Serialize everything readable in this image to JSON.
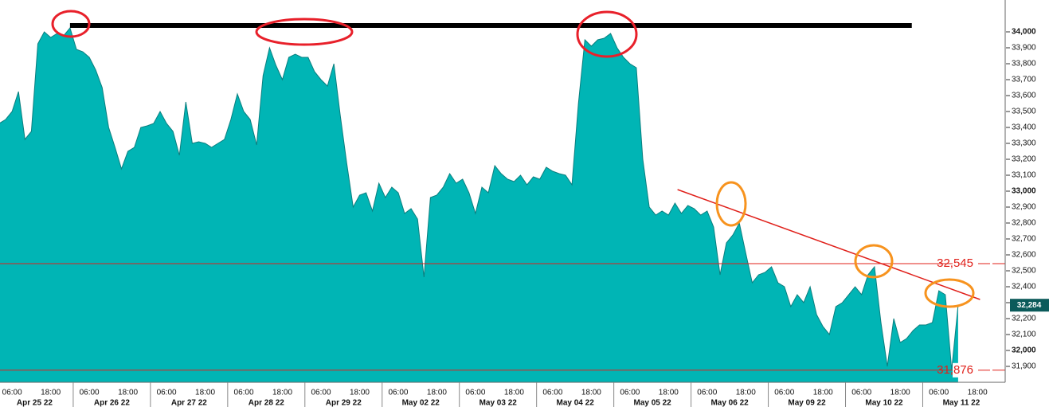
{
  "chart_data": {
    "type": "area",
    "color": "#00b5b5",
    "line_color": "#0a7f7f",
    "ylim": [
      31800,
      34200
    ],
    "yticks": [
      {
        "value": 31900,
        "label": "31,900"
      },
      {
        "value": 32000,
        "label": "32,000"
      },
      {
        "value": 32100,
        "label": "32,100"
      },
      {
        "value": 32200,
        "label": "32,200"
      },
      {
        "value": 32300,
        "label": "32,300"
      },
      {
        "value": 32400,
        "label": "32,400"
      },
      {
        "value": 32500,
        "label": "32,500"
      },
      {
        "value": 32600,
        "label": "32,600"
      },
      {
        "value": 32700,
        "label": "32,700"
      },
      {
        "value": 32800,
        "label": "32,800"
      },
      {
        "value": 32900,
        "label": "32,900"
      },
      {
        "value": 33000,
        "label": "33,000"
      },
      {
        "value": 33100,
        "label": "33,100"
      },
      {
        "value": 33200,
        "label": "33,200"
      },
      {
        "value": 33300,
        "label": "33,300"
      },
      {
        "value": 33400,
        "label": "33,400"
      },
      {
        "value": 33500,
        "label": "33,500"
      },
      {
        "value": 33600,
        "label": "33,600"
      },
      {
        "value": 33700,
        "label": "33,700"
      },
      {
        "value": 33800,
        "label": "33,800"
      },
      {
        "value": 33900,
        "label": "33,900"
      },
      {
        "value": 34000,
        "label": "34,000"
      }
    ],
    "dates": [
      "Apr 25 22",
      "Apr 26 22",
      "Apr 27 22",
      "Apr 28 22",
      "Apr 29 22",
      "May 02 22",
      "May 03 22",
      "May 04 22",
      "May 05 22",
      "May 06 22",
      "May 09 22",
      "May 10 22",
      "May 11 22"
    ],
    "categories": [
      null,
      null,
      "06:00",
      null,
      null,
      null,
      null,
      null,
      "18:00",
      null,
      null,
      null,
      null,
      null,
      "06:00",
      null,
      null,
      null,
      null,
      null,
      "18:00",
      null,
      null,
      null,
      null,
      null,
      "06:00",
      null,
      null,
      null,
      null,
      null,
      "18:00",
      null,
      null,
      null,
      null,
      null,
      "06:00",
      null,
      null,
      null,
      null,
      null,
      "18:00",
      null,
      null,
      null,
      null,
      null,
      "06:00",
      null,
      null,
      null,
      null,
      null,
      "18:00",
      null,
      null,
      null,
      null,
      null,
      "06:00",
      null,
      null,
      null,
      null,
      null,
      "18:00",
      null,
      null,
      null,
      null,
      null,
      "06:00",
      null,
      null,
      null,
      null,
      null,
      "18:00",
      null,
      null,
      null,
      null,
      null,
      "06:00",
      null,
      null,
      null,
      null,
      null,
      "18:00",
      null,
      null,
      null,
      null,
      null,
      "06:00",
      null,
      null,
      null,
      null,
      null,
      "18:00",
      null,
      null,
      null,
      null,
      null,
      "06:00",
      null,
      null,
      null,
      null,
      null,
      "18:00",
      null,
      null,
      null,
      null,
      null,
      "06:00",
      null,
      null,
      null,
      null,
      null,
      "18:00",
      null,
      null,
      null,
      null,
      null,
      "06:00",
      null,
      null,
      null,
      null,
      null,
      "18:00",
      null,
      null,
      null,
      null,
      null,
      "06:00",
      null,
      null,
      null,
      null,
      null,
      "18:00"
    ],
    "values": [
      33425,
      33450,
      33500,
      33625,
      33325,
      33375,
      33925,
      34000,
      33965,
      33990,
      33975,
      34025,
      33890,
      33875,
      33840,
      33760,
      33650,
      33400,
      33275,
      33140,
      33250,
      33275,
      33400,
      33410,
      33425,
      33500,
      33425,
      33375,
      33225,
      33560,
      33300,
      33310,
      33300,
      33275,
      33300,
      33325,
      33450,
      33610,
      33500,
      33450,
      33290,
      33725,
      33900,
      33790,
      33700,
      33840,
      33860,
      33840,
      33840,
      33750,
      33700,
      33660,
      33800,
      33475,
      33175,
      32900,
      32975,
      32990,
      32875,
      33050,
      32960,
      33025,
      32990,
      32860,
      32890,
      32825,
      32460,
      32960,
      32975,
      33025,
      33110,
      33050,
      33075,
      32990,
      32860,
      33025,
      32990,
      33160,
      33110,
      33075,
      33060,
      33100,
      33040,
      33090,
      33075,
      33150,
      33125,
      33110,
      33100,
      33040,
      33550,
      33950,
      33910,
      33950,
      33960,
      33990,
      33900,
      33840,
      33800,
      33775,
      33200,
      32900,
      32850,
      32875,
      32850,
      32925,
      32860,
      32910,
      32890,
      32850,
      32875,
      32775,
      32475,
      32675,
      32725,
      32800,
      32610,
      32425,
      32475,
      32490,
      32525,
      32425,
      32400,
      32275,
      32350,
      32300,
      32400,
      32225,
      32150,
      32100,
      32275,
      32300,
      32350,
      32400,
      32350,
      32475,
      32525,
      32175,
      31900,
      32200,
      32050,
      32075,
      32125,
      32160,
      32160,
      32175,
      32375,
      32350,
      31880,
      32284,
      null,
      null,
      null
    ],
    "current_price": {
      "value": 32284,
      "label": "32,284"
    },
    "hlines": [
      {
        "value": 32545,
        "label": "32,545",
        "color": "#e0201a"
      },
      {
        "value": 31876,
        "label": "31,876",
        "color": "#e0201a"
      }
    ],
    "resistance_line": {
      "value": 34040,
      "color": "#000000"
    },
    "trend_line": {
      "values": [
        33010,
        32320
      ],
      "color": "#e0201a"
    }
  }
}
